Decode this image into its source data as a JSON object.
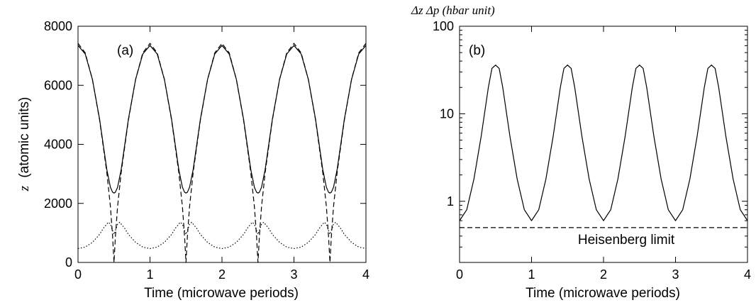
{
  "chart_data": [
    {
      "type": "line",
      "panel_label": "(a)",
      "xlabel": "Time (microwave periods)",
      "ylabel_symbol": "z",
      "ylabel_units": "(atomic units)",
      "xlim": [
        0,
        4
      ],
      "ylim": [
        0,
        8000
      ],
      "x_ticks": [
        "0",
        "1",
        "2",
        "3",
        "4"
      ],
      "y_ticks": [
        "0",
        "2000",
        "4000",
        "6000",
        "8000"
      ],
      "grid": false,
      "series": [
        {
          "style": "solid",
          "x": [
            0,
            0.1,
            0.2,
            0.3,
            0.4,
            0.45,
            0.48,
            0.5,
            0.52,
            0.55,
            0.6,
            0.7,
            0.8,
            0.9,
            1.0
          ],
          "y": [
            7350,
            7060,
            6200,
            4850,
            3150,
            2550,
            2380,
            2350,
            2380,
            2550,
            3150,
            4850,
            6200,
            7060,
            7350
          ],
          "repeat_period": 1
        },
        {
          "style": "dashed",
          "x": [
            0,
            0.1,
            0.2,
            0.3,
            0.4,
            0.45,
            0.48,
            0.5,
            0.52,
            0.55,
            0.6,
            0.7,
            0.8,
            0.9,
            1.0
          ],
          "y": [
            7420,
            7100,
            6200,
            4820,
            3050,
            1900,
            900,
            0,
            900,
            1900,
            3050,
            4820,
            6200,
            7100,
            7420
          ],
          "repeat_period": 1
        },
        {
          "style": "dotted",
          "x": [
            0,
            0.1,
            0.2,
            0.3,
            0.35,
            0.42,
            0.45,
            0.47,
            0.5,
            0.53,
            0.55,
            0.58,
            0.65,
            0.7,
            0.8,
            0.9,
            1.0
          ],
          "y": [
            470,
            520,
            680,
            950,
            1150,
            1360,
            1300,
            1150,
            950,
            1150,
            1300,
            1360,
            1150,
            950,
            680,
            520,
            470
          ],
          "repeat_period": 1
        }
      ]
    },
    {
      "type": "line",
      "panel_label": "(b)",
      "title": "Δz Δp (hbar unit)",
      "xlabel": "Time (microwave periods)",
      "xlim": [
        0,
        4
      ],
      "ylim": [
        0.2,
        100
      ],
      "yscale": "log",
      "x_ticks": [
        "0",
        "1",
        "2",
        "3",
        "4"
      ],
      "y_ticks": [
        "1",
        "10",
        "100"
      ],
      "grid": false,
      "annotation": "Heisenberg limit",
      "series": [
        {
          "style": "solid",
          "x": [
            0,
            0.1,
            0.2,
            0.3,
            0.4,
            0.45,
            0.5,
            0.55,
            0.6,
            0.7,
            0.8,
            0.9,
            1.0
          ],
          "y": [
            0.6,
            0.8,
            1.8,
            5.5,
            20,
            33,
            36,
            33,
            20,
            5.5,
            1.8,
            0.8,
            0.6
          ],
          "repeat_period": 1
        },
        {
          "style": "dashed",
          "x": [
            0,
            4
          ],
          "y": [
            0.5,
            0.5
          ]
        }
      ]
    }
  ]
}
